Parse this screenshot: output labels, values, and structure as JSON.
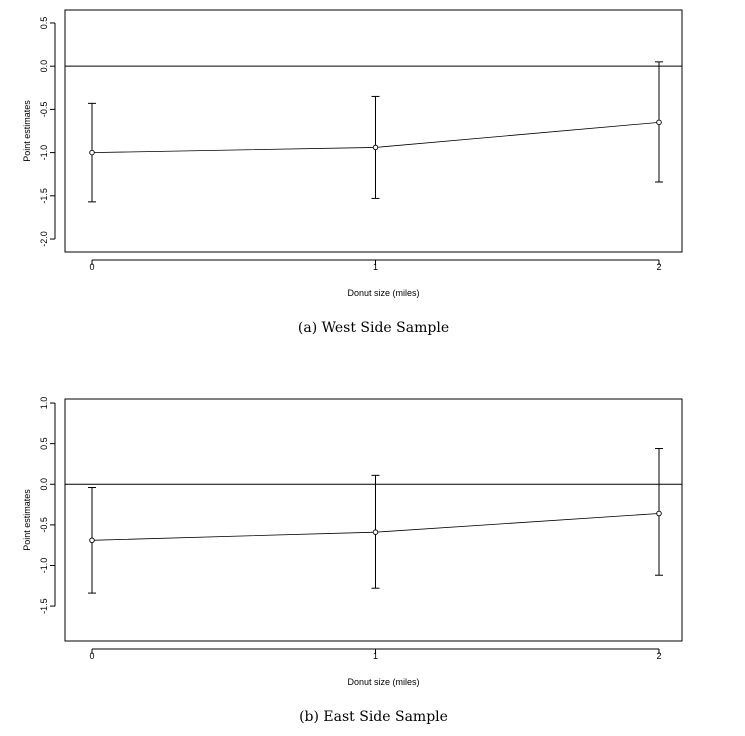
{
  "chart_data": [
    {
      "type": "scatter",
      "caption": "(a) West Side Sample",
      "xlabel": "Donut size (miles)",
      "ylabel": "Point estimates",
      "x": [
        0,
        1,
        2
      ],
      "x_ticks": [
        "0",
        "1",
        "2"
      ],
      "y_ticks": [
        "-2.0",
        "-1.5",
        "-1.0",
        "-0.5",
        "0.0",
        "0.5"
      ],
      "ylim": [
        -2.15,
        0.65
      ],
      "reference_line": 0,
      "point_estimates": [
        -1.0,
        -0.94,
        -0.65
      ],
      "ci_lower": [
        -1.57,
        -1.53,
        -1.34
      ],
      "ci_upper": [
        -0.43,
        -0.35,
        0.05
      ]
    },
    {
      "type": "scatter",
      "caption": "(b) East Side Sample",
      "xlabel": "Donut size (miles)",
      "ylabel": "Point estimates",
      "x": [
        0,
        1,
        2
      ],
      "x_ticks": [
        "0",
        "1",
        "2"
      ],
      "y_ticks": [
        "-1.5",
        "-1.0",
        "-0.5",
        "0.0",
        "0.5",
        "1.0"
      ],
      "ylim": [
        -1.93,
        1.05
      ],
      "reference_line": 0,
      "point_estimates": [
        -0.69,
        -0.59,
        -0.36
      ],
      "ci_lower": [
        -1.34,
        -1.28,
        -1.12
      ],
      "ci_upper": [
        -0.04,
        0.11,
        0.44
      ]
    }
  ]
}
